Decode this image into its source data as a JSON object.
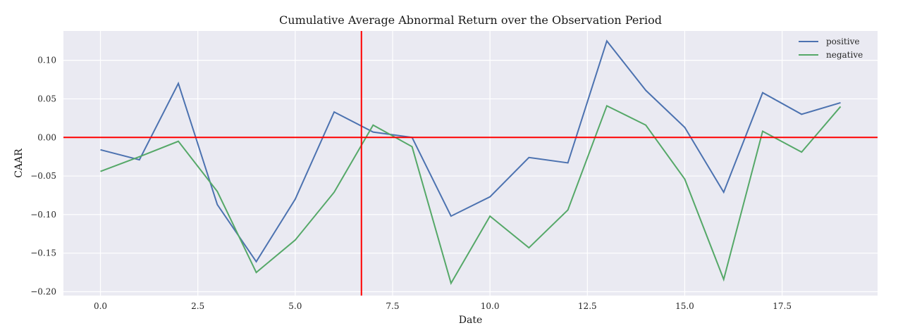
{
  "chart_data": {
    "type": "line",
    "title": "Cumulative Average Abnormal Return over the Observation Period",
    "xlabel": "Date",
    "ylabel": "CAAR",
    "x": [
      0,
      1,
      2,
      3,
      4,
      5,
      6,
      7,
      8,
      9,
      10,
      11,
      12,
      13,
      14,
      15,
      16,
      17,
      18,
      19
    ],
    "xlim": [
      -0.95,
      19.95
    ],
    "ylim": [
      -0.205,
      0.138
    ],
    "xticks": [
      0.0,
      2.5,
      5.0,
      7.5,
      10.0,
      12.5,
      15.0,
      17.5
    ],
    "xtick_labels": [
      "0.0",
      "2.5",
      "5.0",
      "7.5",
      "10.0",
      "12.5",
      "15.0",
      "17.5"
    ],
    "yticks": [
      0.1,
      0.05,
      0.0,
      -0.05,
      -0.1,
      -0.15,
      -0.2
    ],
    "ytick_labels": [
      "0.10",
      "0.05",
      "0.00",
      "−0.05",
      "−0.10",
      "−0.15",
      "−0.20"
    ],
    "grid": true,
    "legend_position": "top-right",
    "series": [
      {
        "name": "positive",
        "color": "#4c72b0",
        "values": [
          -0.016,
          -0.029,
          0.07,
          -0.087,
          -0.161,
          -0.08,
          0.033,
          0.007,
          0.0,
          -0.102,
          -0.077,
          -0.026,
          -0.033,
          0.125,
          0.061,
          0.013,
          -0.071,
          0.058,
          0.03,
          0.045
        ]
      },
      {
        "name": "negative",
        "color": "#55a868",
        "values": [
          -0.044,
          -0.025,
          -0.005,
          -0.07,
          -0.175,
          -0.133,
          -0.071,
          0.016,
          -0.012,
          -0.189,
          -0.102,
          -0.143,
          -0.094,
          0.041,
          0.016,
          -0.054,
          -0.184,
          0.008,
          -0.019,
          0.04
        ]
      }
    ],
    "reference_lines": {
      "horizontal_y": 0.0,
      "vertical_x": 6.7,
      "color": "#ff0000"
    },
    "background_color": "#eaeaf2",
    "grid_color": "#ffffff"
  }
}
